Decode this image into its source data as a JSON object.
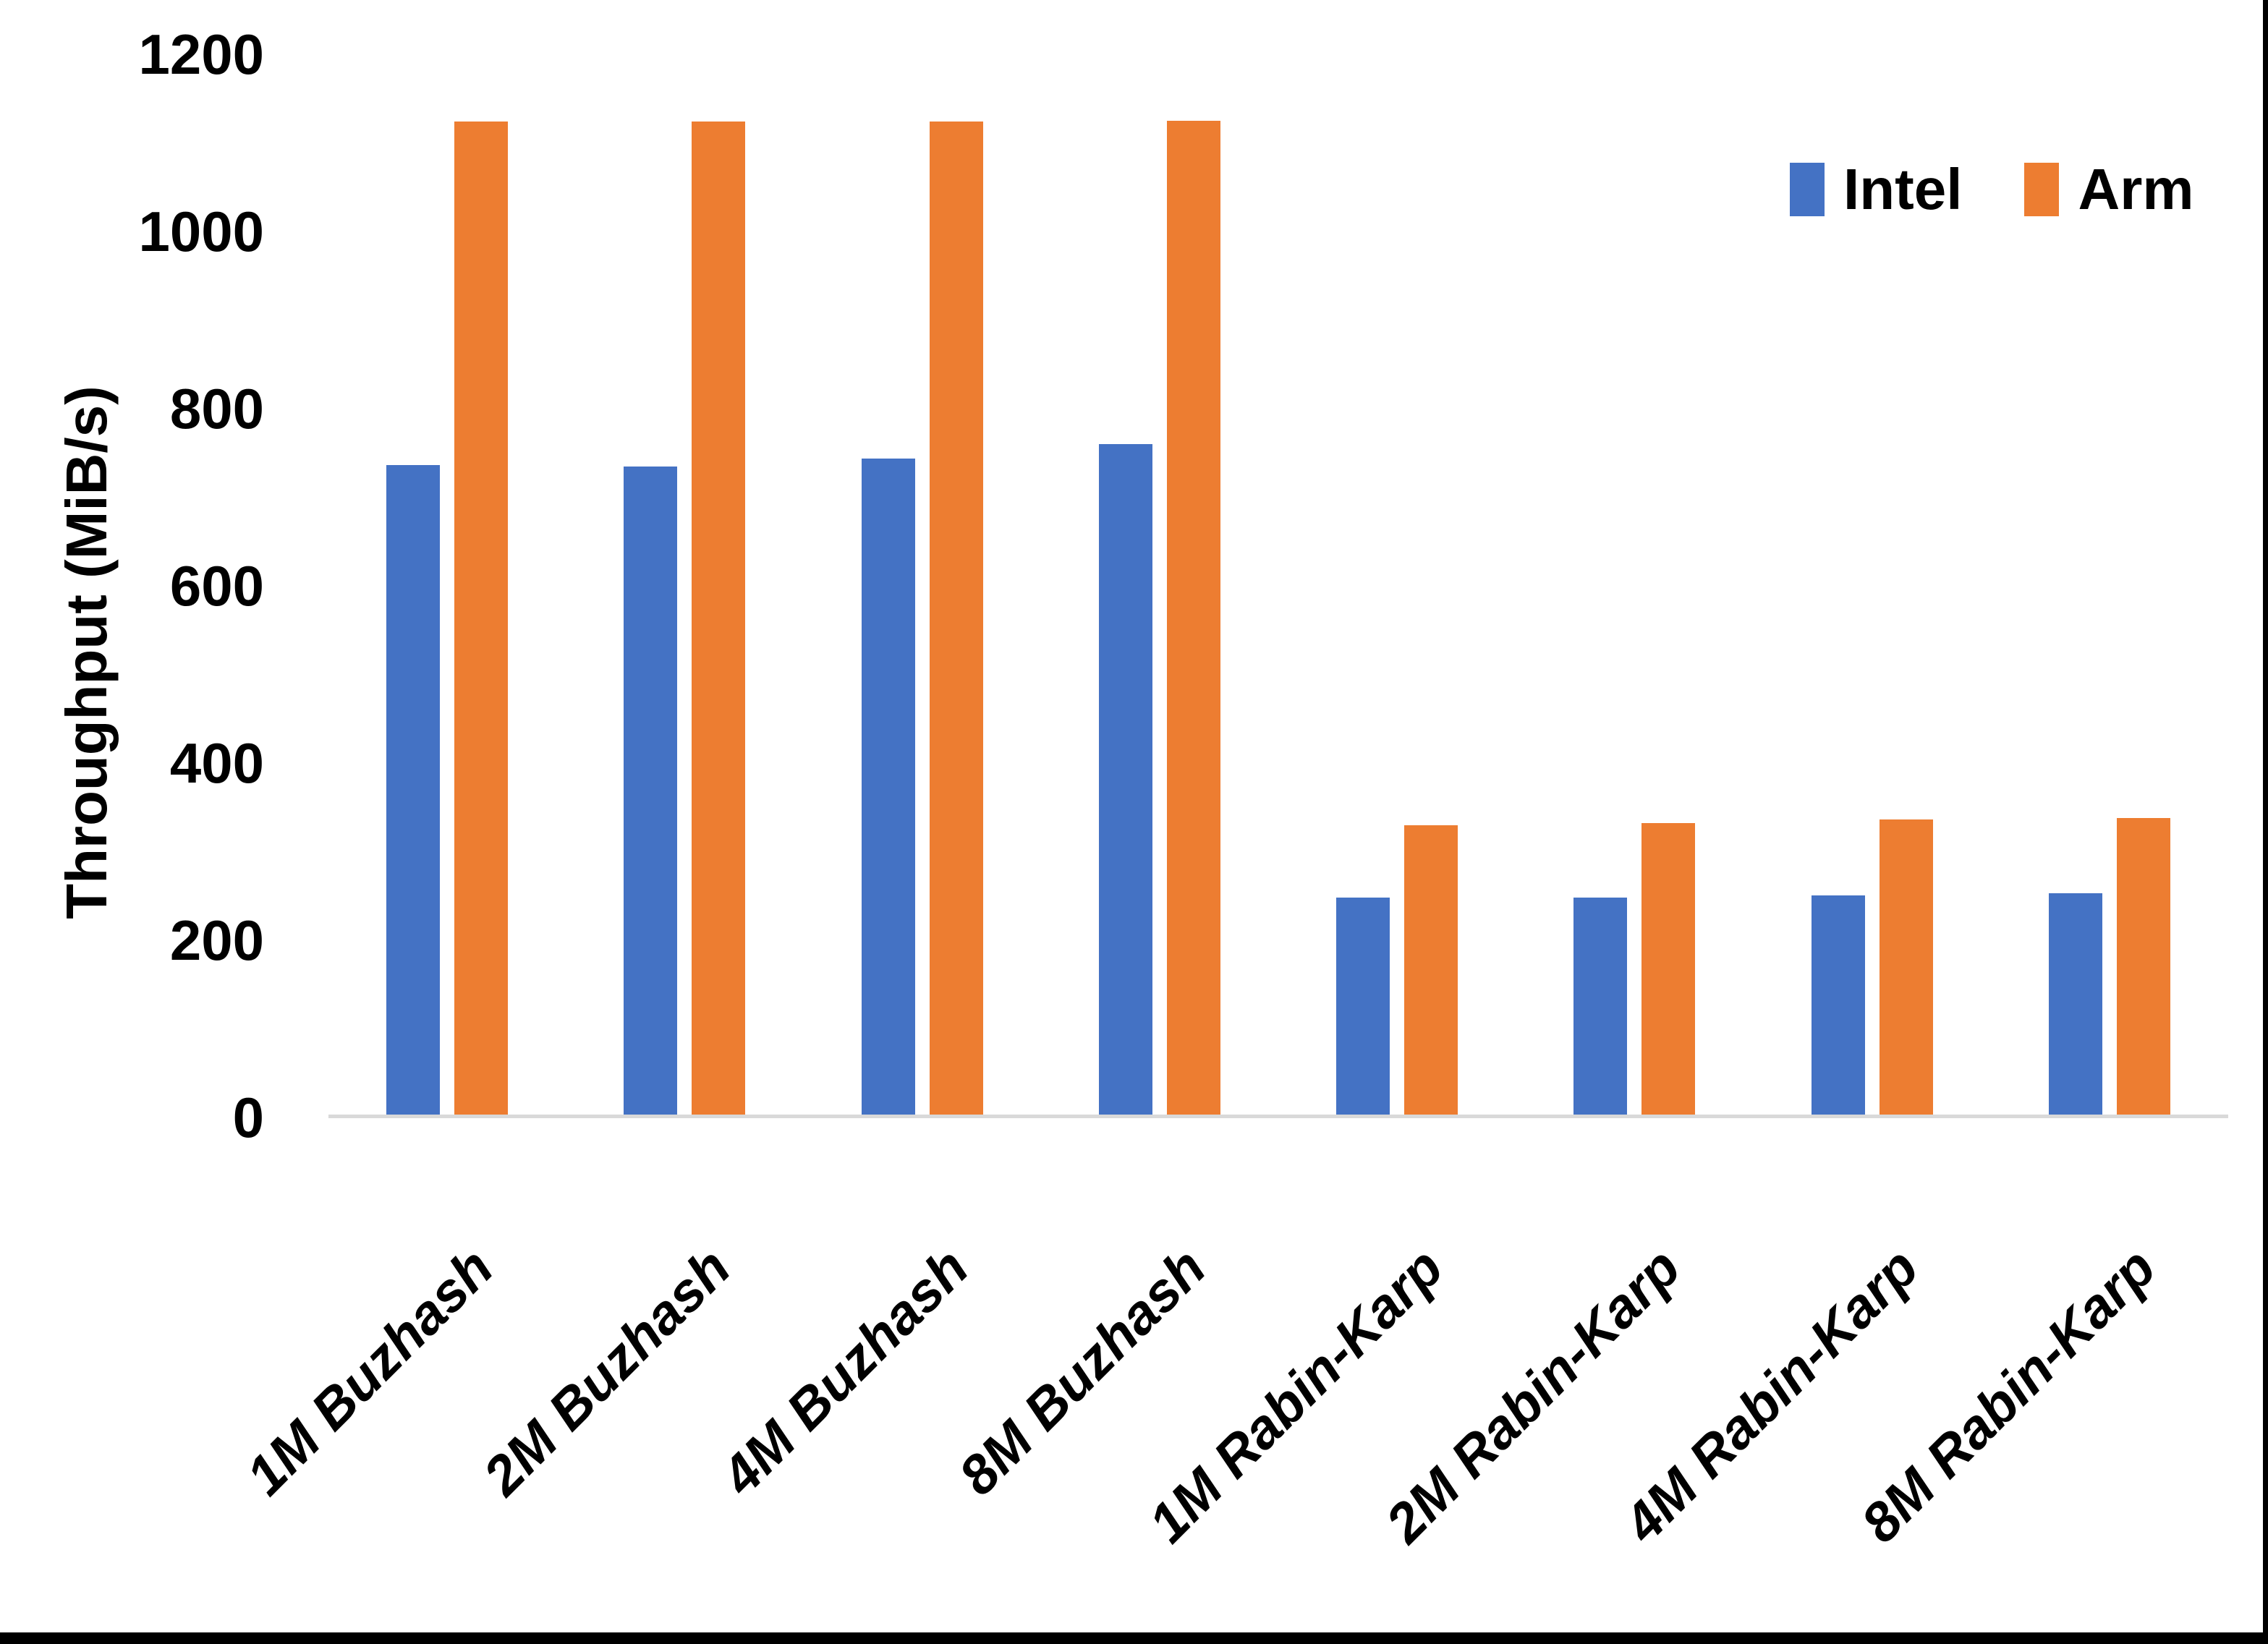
{
  "chart_data": {
    "type": "bar",
    "title": "",
    "ylabel": "Throughput (MiB/s)",
    "xlabel": "",
    "categories": [
      "1M Buzhash",
      "2M Buzhash",
      "4M Buzhash",
      "8M Buzhash",
      "1M Rabin-Karp",
      "2M Rabin-Karp",
      "4M Rabin-Karp",
      "8M Rabin-Karp"
    ],
    "series": [
      {
        "name": "Intel",
        "color": "#4472C4",
        "values": [
          736,
          735,
          744,
          760,
          248,
          248,
          251,
          253
        ]
      },
      {
        "name": "Arm",
        "color": "#ED7D31",
        "values": [
          1124,
          1124,
          1124,
          1125,
          330,
          332,
          336,
          338
        ]
      }
    ],
    "ylim": [
      0,
      1200
    ],
    "yticks": [
      0,
      200,
      400,
      600,
      800,
      1000,
      1200
    ],
    "grid": "off",
    "legend_position": "top-right",
    "axis_line_color": "#D9D9D9",
    "text_color": "#000000"
  }
}
